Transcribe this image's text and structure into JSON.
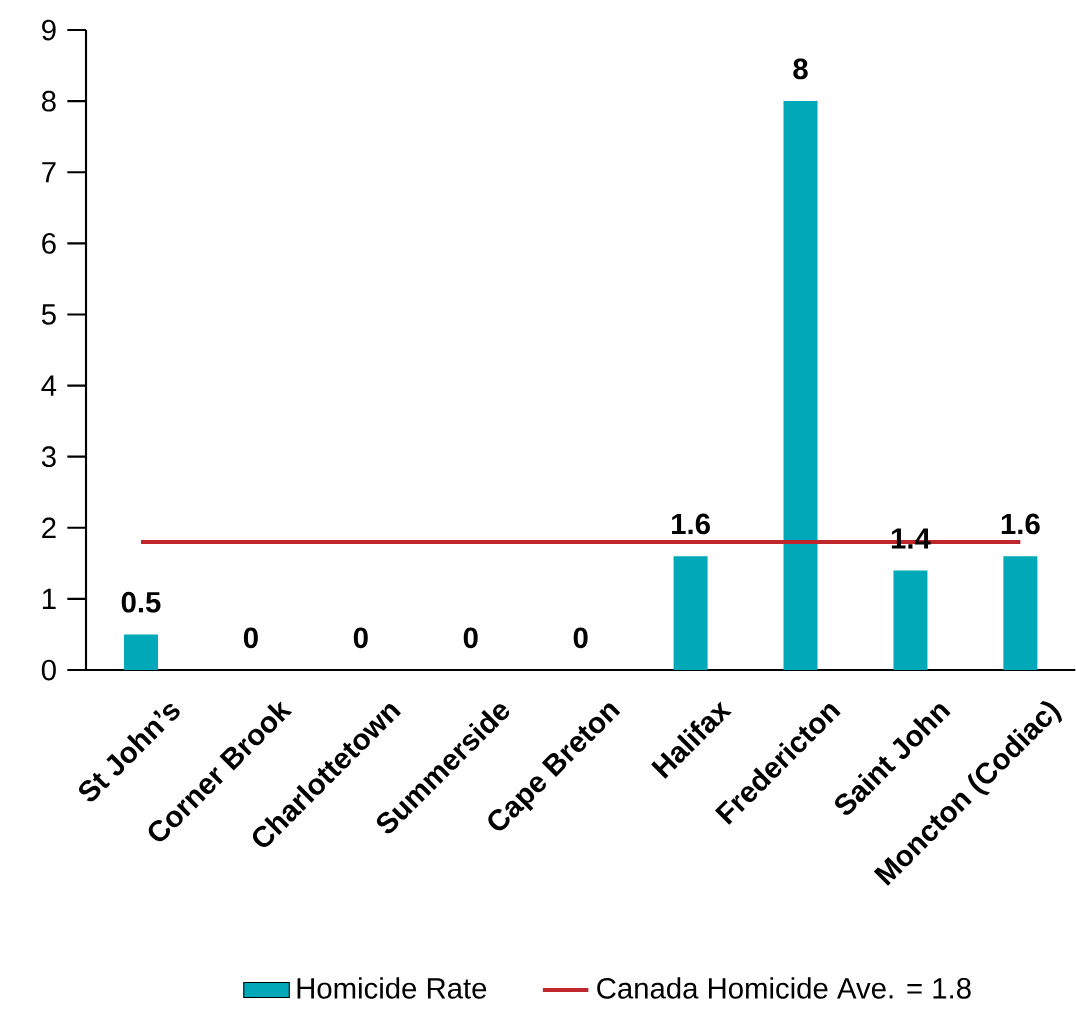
{
  "chart_data": {
    "type": "bar",
    "categories": [
      "St John’s",
      "Corner Brook",
      "Charlottetown",
      "Summerside",
      "Cape Breton",
      "Halifax",
      "Fredericton",
      "Saint John",
      "Moncton (Codiac)"
    ],
    "series": [
      {
        "name": "Homicide Rate",
        "color": "#00a8b8",
        "values": [
          0.5,
          0,
          0,
          0,
          0,
          1.6,
          8,
          1.4,
          1.6
        ]
      }
    ],
    "ref_lines": [
      {
        "axis": "y",
        "value": 1.8,
        "label": "Canada Homicide Ave. = 1.8",
        "color": "#c0272d"
      }
    ],
    "ylim": [
      0,
      9
    ],
    "yticks": [
      0,
      1,
      2,
      3,
      4,
      5,
      6,
      7,
      8,
      9
    ],
    "data_labels": true,
    "legend": "bottom"
  }
}
